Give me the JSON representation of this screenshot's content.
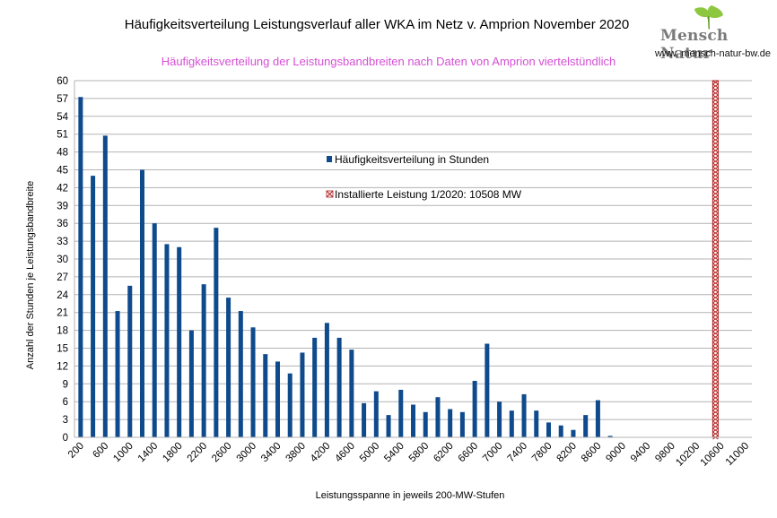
{
  "header": {
    "title": "Häufigkeitsverteilung Leistungsverlauf aller WKA im Netz v. Amprion November 2020",
    "subtitle": "Häufigkeitsverteilung der Leistungsbandbreiten nach Daten von Amprion viertelstündlich"
  },
  "logo": {
    "word": "Mensch Natur",
    "url": "www. mensch-natur-bw.de"
  },
  "colors": {
    "bar": "#0e4a8c",
    "capacity_line": "#b01c1c",
    "subtitle": "#d54fd5",
    "grid": "#b3b3b3"
  },
  "chart_data": {
    "type": "bar",
    "title": "Häufigkeitsverteilung Leistungsverlauf aller WKA im Netz v. Amprion November 2020",
    "subtitle": "Häufigkeitsverteilung der Leistungsbandbreiten nach Daten von Amprion viertelstündlich",
    "xlabel": "Leistungsspanne in jeweils 200-MW-Stufen",
    "ylabel": "Anzahl der Stunden je Leistungsbandbreite",
    "ylim": [
      0,
      60
    ],
    "yticks": [
      0,
      3,
      6,
      9,
      12,
      15,
      18,
      21,
      24,
      27,
      30,
      33,
      36,
      39,
      42,
      45,
      48,
      51,
      54,
      57,
      60
    ],
    "xtick_labels": [
      "200",
      "600",
      "1000",
      "1400",
      "1800",
      "2200",
      "2600",
      "3000",
      "3400",
      "3800",
      "4200",
      "4600",
      "5000",
      "5400",
      "5800",
      "6200",
      "6600",
      "7000",
      "7400",
      "7800",
      "8200",
      "8600",
      "9000",
      "9400",
      "9800",
      "10200",
      "10600",
      "11000"
    ],
    "grid": "horizontal",
    "legend_position": "center",
    "series": [
      {
        "name": "Häufigkeitsverteilung in Stunden",
        "type": "bar",
        "x": [
          200,
          400,
          600,
          800,
          1000,
          1200,
          1400,
          1600,
          1800,
          2000,
          2200,
          2400,
          2600,
          2800,
          3000,
          3200,
          3400,
          3600,
          3800,
          4000,
          4200,
          4400,
          4600,
          4800,
          5000,
          5200,
          5400,
          5600,
          5800,
          6000,
          6200,
          6400,
          6600,
          6800,
          7000,
          7200,
          7400,
          7600,
          7800,
          8000,
          8200,
          8400,
          8600,
          8800
        ],
        "values": [
          57.25,
          44,
          50.75,
          21.25,
          25.5,
          45,
          36,
          32.5,
          32,
          18,
          25.75,
          35.25,
          23.5,
          21.25,
          18.5,
          14,
          12.75,
          10.75,
          14.25,
          16.75,
          19.25,
          16.75,
          14.75,
          5.75,
          7.75,
          3.75,
          8,
          5.5,
          4.25,
          6.75,
          4.75,
          4.25,
          9.5,
          15.75,
          6,
          4.5,
          7.25,
          4.5,
          2.5,
          2,
          1.25,
          3.75,
          6.25,
          0.25
        ]
      },
      {
        "name": "Installierte Leistung 1/2020: 10508 MW",
        "type": "vline",
        "x": 10508
      }
    ]
  }
}
